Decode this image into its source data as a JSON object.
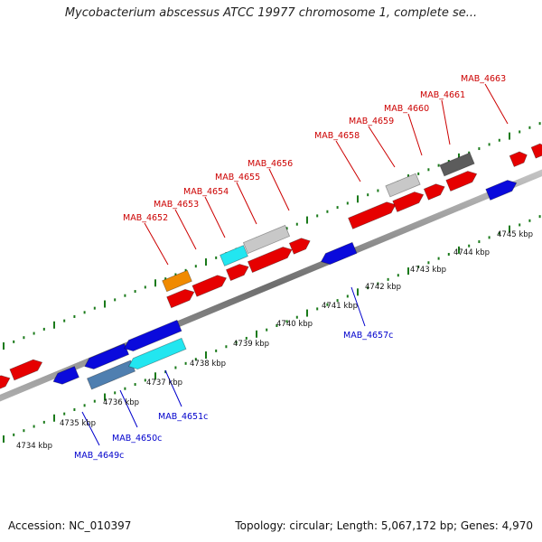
{
  "title": "Mycobacterium abscessus ATCC 19977 chromosome 1, complete se...",
  "footer": {
    "accession": "Accession: NC_010397",
    "summary": "Topology: circular; Length: 5,067,172 bp; Genes: 4,970"
  },
  "colors": {
    "backbone": "#8a8a8a",
    "tick": "#1a7a1a",
    "forward_label": "#cc0000",
    "reverse_label": "#0000cc",
    "red": "#e60000",
    "blue": "#0a0adc",
    "cyan": "#22e6f0",
    "steel": "#4f7fb0",
    "orange": "#f08a00",
    "light_gray": "#c8c8c8",
    "dark_gray": "#5c5c5c"
  },
  "kbp_labels": [
    "4734 kbp",
    "4735 kbp",
    "4736 kbp",
    "4737 kbp",
    "4738 kbp",
    "4739 kbp",
    "4740 kbp",
    "4741 kbp",
    "4742 kbp",
    "4743 kbp",
    "4744 kbp",
    "4745 kbp"
  ],
  "forward_gene_labels": [
    "MAB_4652",
    "MAB_4653",
    "MAB_4654",
    "MAB_4655",
    "MAB_4656",
    "MAB_4658",
    "MAB_4659",
    "MAB_4660",
    "MAB_4661",
    "MAB_4663"
  ],
  "reverse_gene_labels": [
    "MAB_4649c",
    "MAB_4650c",
    "MAB_4651c",
    "MAB_4657c"
  ]
}
